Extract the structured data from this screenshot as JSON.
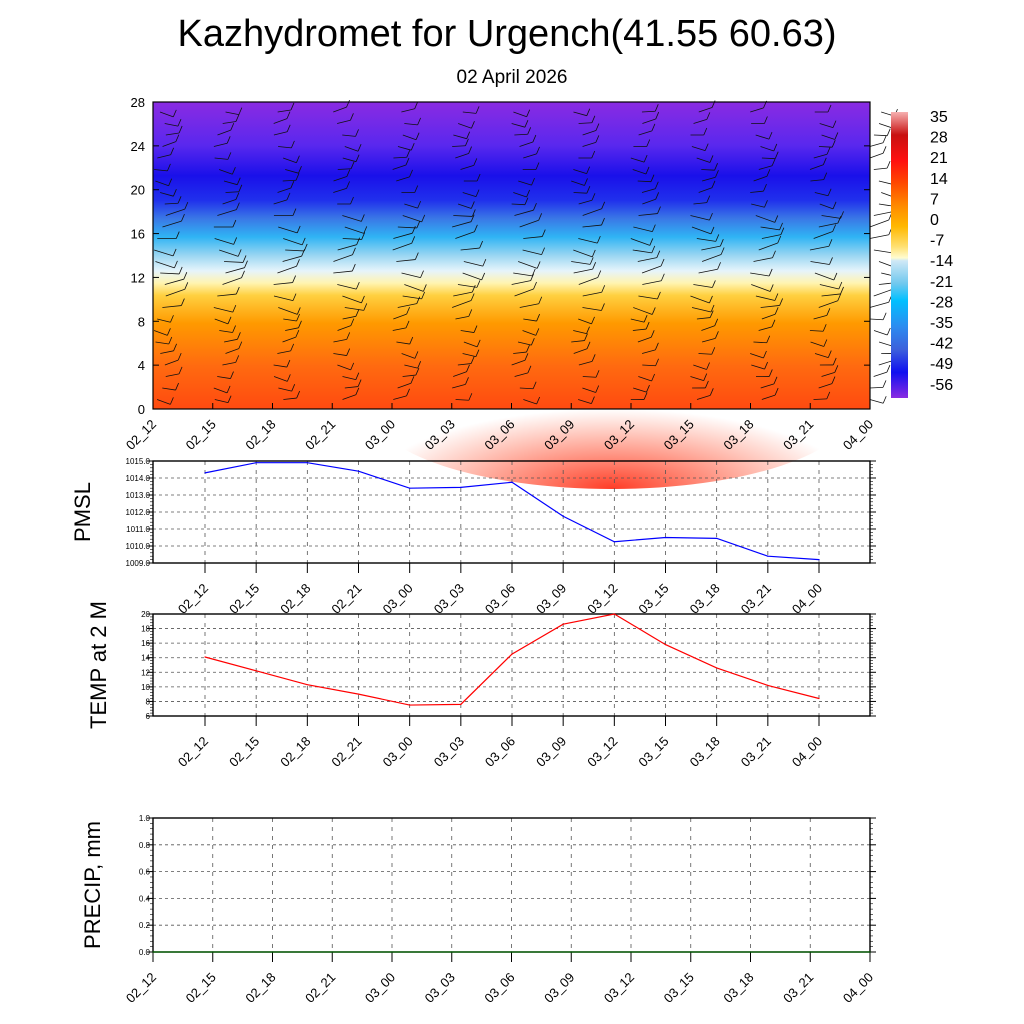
{
  "title": "Kazhydromet for Urgench(41.55 60.63)",
  "subtitle": "02 April 2026",
  "colors": {
    "pmsl": "#0000ff",
    "temp": "#ff0000",
    "precip": "#006400"
  },
  "chart_data": [
    {
      "type": "heatmap",
      "name": "temperature-height cross section with wind barbs",
      "x_ticks": [
        "02_12",
        "02_15",
        "02_18",
        "02_21",
        "03_00",
        "03_03",
        "03_06",
        "03_09",
        "03_12",
        "03_15",
        "03_18",
        "03_21",
        "04_00"
      ],
      "y_ticks": [
        "0",
        "4",
        "8",
        "12",
        "16",
        "20",
        "24",
        "28"
      ],
      "ylim": [
        0,
        28
      ],
      "colorbar": {
        "labels": [
          "35",
          "28",
          "21",
          "14",
          "7",
          "0",
          "-7",
          "-14",
          "-21",
          "-28",
          "-35",
          "-42",
          "-49",
          "-56"
        ]
      }
    },
    {
      "type": "line",
      "ylabel": "PMSL",
      "x": [
        "02_12",
        "02_15",
        "02_18",
        "02_21",
        "03_00",
        "03_03",
        "03_06",
        "03_09",
        "03_12",
        "03_15",
        "03_18",
        "03_21",
        "04_00"
      ],
      "values": [
        1014.3,
        1014.9,
        1014.9,
        1014.4,
        1013.4,
        1013.45,
        1013.75,
        1011.75,
        1010.25,
        1010.5,
        1010.45,
        1009.4,
        1009.2
      ],
      "ylim": [
        1009.0,
        1015.0
      ],
      "y_ticks": [
        "1009.0",
        "1010.0",
        "1011.0",
        "1012.0",
        "1013.0",
        "1014.0",
        "1015.0"
      ],
      "grid": true
    },
    {
      "type": "line",
      "ylabel": "TEMP at 2 M",
      "x": [
        "02_12",
        "02_15",
        "02_18",
        "02_21",
        "03_00",
        "03_03",
        "03_06",
        "03_09",
        "03_12",
        "03_15",
        "03_18",
        "03_21",
        "04_00"
      ],
      "values": [
        14.1,
        12.2,
        10.3,
        9.0,
        7.5,
        7.6,
        14.5,
        18.6,
        20.0,
        15.8,
        12.6,
        10.2,
        8.4
      ],
      "ylim": [
        6,
        20
      ],
      "y_ticks": [
        "6",
        "8",
        "10",
        "12",
        "14",
        "16",
        "18",
        "20"
      ],
      "grid": true
    },
    {
      "type": "line",
      "ylabel": "PRECIP, mm",
      "x": [
        "02_12",
        "02_15",
        "02_18",
        "02_21",
        "03_00",
        "03_03",
        "03_06",
        "03_09",
        "03_12",
        "03_15",
        "03_18",
        "03_21",
        "04_00"
      ],
      "values": [
        0,
        0,
        0,
        0,
        0,
        0,
        0,
        0,
        0,
        0,
        0,
        0,
        0
      ],
      "ylim": [
        0,
        1.0
      ],
      "y_ticks": [
        "0.0",
        "0.2",
        "0.4",
        "0.6",
        "0.8",
        "1.0"
      ],
      "grid": true
    }
  ]
}
